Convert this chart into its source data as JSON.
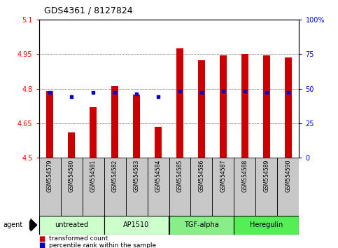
{
  "title": "GDS4361 / 8127824",
  "samples": [
    "GSM554579",
    "GSM554580",
    "GSM554581",
    "GSM554582",
    "GSM554583",
    "GSM554584",
    "GSM554585",
    "GSM554586",
    "GSM554587",
    "GSM554588",
    "GSM554589",
    "GSM554590"
  ],
  "transformed_count": [
    4.79,
    4.61,
    4.72,
    4.81,
    4.775,
    4.635,
    4.975,
    4.925,
    4.945,
    4.95,
    4.945,
    4.935
  ],
  "percentile_rank": [
    47,
    44,
    47,
    47,
    46,
    44,
    48,
    47,
    48,
    48,
    47,
    47
  ],
  "ylim_left": [
    4.5,
    5.1
  ],
  "ylim_right": [
    0,
    100
  ],
  "yticks_left": [
    4.5,
    4.65,
    4.8,
    4.95,
    5.1
  ],
  "yticks_right": [
    0,
    25,
    50,
    75,
    100
  ],
  "ytick_labels_right": [
    "0",
    "25",
    "50",
    "75",
    "100%"
  ],
  "bar_color": "#cc0000",
  "dot_color": "#0000cc",
  "agent_groups": [
    {
      "label": "untreated",
      "start": 0,
      "end": 3,
      "color": "#ccffcc"
    },
    {
      "label": "AP1510",
      "start": 3,
      "end": 6,
      "color": "#ccffcc"
    },
    {
      "label": "TGF-alpha",
      "start": 6,
      "end": 9,
      "color": "#77ee77"
    },
    {
      "label": "Heregulin",
      "start": 9,
      "end": 12,
      "color": "#55dd55"
    }
  ],
  "agent_label": "agent",
  "legend_items": [
    {
      "color": "#cc0000",
      "label": "transformed count"
    },
    {
      "color": "#0000cc",
      "label": "percentile rank within the sample"
    }
  ],
  "bar_width": 0.35
}
